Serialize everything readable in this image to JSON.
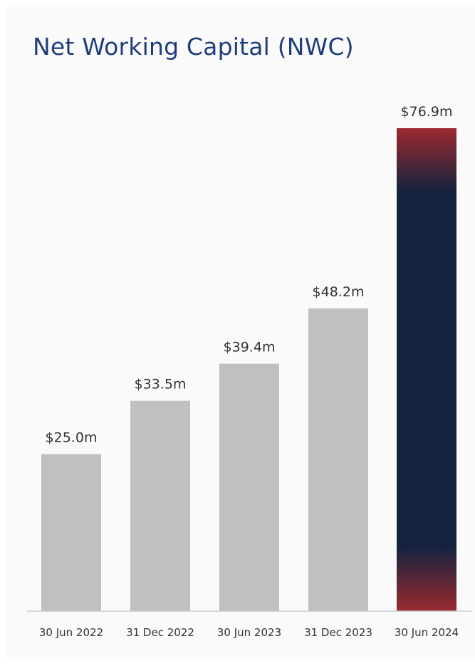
{
  "chart_data": {
    "type": "bar",
    "title": "Net Working Capital (NWC)",
    "categories": [
      "30 Jun 2022",
      "31 Dec 2022",
      "30 Jun 2023",
      "31 Dec 2023",
      "30 Jun 2024"
    ],
    "values": [
      25.0,
      33.5,
      39.4,
      48.2,
      76.9
    ],
    "value_labels": [
      "$25.0m",
      "$33.5m",
      "$39.4m",
      "$48.2m",
      "$76.9m"
    ],
    "ylim": [
      0,
      76.9
    ],
    "grid": false,
    "colors": {
      "bar": "#c0c0c0",
      "highlight_core": "#16233f",
      "highlight_edge": "#9b2a2f",
      "axis": "#cccccc",
      "title": "#1f3d7a"
    }
  }
}
